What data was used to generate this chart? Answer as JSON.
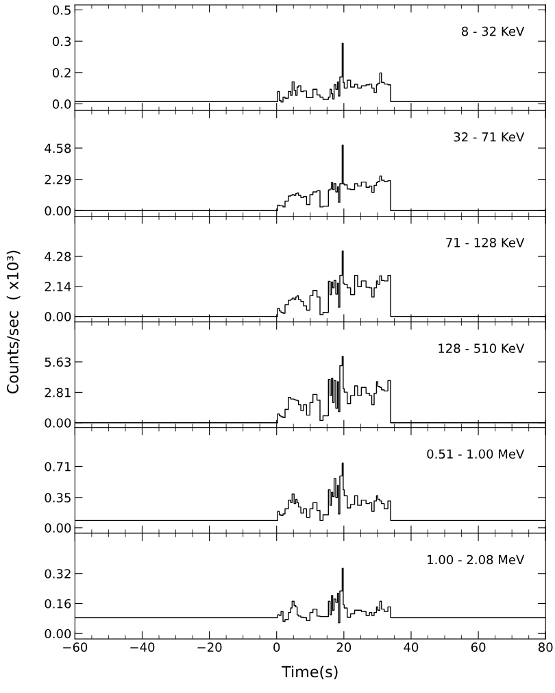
{
  "chart_data": [
    {
      "type": "step",
      "annotations": [
        "8 - 32 KeV"
      ],
      "tick_labels": "y",
      "xlim": [
        -60,
        80
      ],
      "xticks": [
        -60,
        -40,
        -20,
        0,
        20,
        40,
        60,
        80
      ],
      "ylim": [
        -0.033,
        0.49
      ],
      "yticks": [
        {
          "value": 0,
          "label": "0.0"
        },
        {
          "value": 0.155,
          "label": "0.2"
        },
        {
          "value": 0.31,
          "label": "0.3"
        },
        {
          "value": 0.465,
          "label": "0.5"
        }
      ],
      "x": [
        -60,
        0.3,
        0.8,
        1.3,
        1.9,
        2.5,
        3.5,
        4.2,
        4.6,
        5.2,
        5.7,
        6.1,
        6.5,
        7.2,
        8.0,
        8.9,
        9.9,
        10.8,
        12.0,
        12.9,
        13.8,
        15.4,
        15.9,
        16.3,
        16.7,
        17.1,
        17.6,
        18.1,
        18.4,
        18.8,
        19.5,
        19.8,
        20.1,
        21.0,
        22.0,
        23.2,
        24.1,
        25.2,
        26.6,
        27.6,
        28.3,
        29.0,
        29.7,
        30.1,
        30.7,
        31.2,
        32.0,
        33.1,
        33.9,
        80
      ],
      "series": [
        {
          "color": "#000000",
          "values": [
            0.011,
            0.061,
            0.017,
            0.009,
            0.033,
            0.028,
            0.061,
            0.042,
            0.109,
            0.067,
            0.042,
            0.083,
            0.089,
            0.061,
            0.064,
            0.031,
            0.031,
            0.072,
            0.044,
            0.033,
            0.022,
            0.033,
            0.072,
            0.05,
            0.024,
            0.094,
            0.072,
            0.109,
            0.039,
            0.133,
            0.3,
            0.106,
            0.078,
            0.117,
            0.083,
            0.097,
            0.078,
            0.089,
            0.094,
            0.098,
            0.078,
            0.056,
            0.094,
            0.102,
            0.153,
            0.106,
            0.098,
            0.094,
            0.011,
            0.011
          ]
        }
      ]
    },
    {
      "type": "step",
      "annotations": [
        "32 - 71 KeV"
      ],
      "tick_labels": "y",
      "xlim": [
        -60,
        80
      ],
      "xticks": [
        -60,
        -40,
        -20,
        0,
        20,
        40,
        60,
        80
      ],
      "ylim": [
        -0.41,
        7.33
      ],
      "yticks": [
        {
          "value": 0,
          "label": "0.00"
        },
        2.29,
        4.58
      ],
      "x": [
        -60,
        0.3,
        0.8,
        1.3,
        1.9,
        2.5,
        3.5,
        4.2,
        4.6,
        5.2,
        5.7,
        6.1,
        6.5,
        7.2,
        8.0,
        8.9,
        9.9,
        10.8,
        12.0,
        12.9,
        13.8,
        15.4,
        15.9,
        16.3,
        16.7,
        17.1,
        17.6,
        18.1,
        18.4,
        18.8,
        19.5,
        19.8,
        20.1,
        21.0,
        22.0,
        23.2,
        24.1,
        25.2,
        26.6,
        27.6,
        28.3,
        29.0,
        29.7,
        30.1,
        30.7,
        31.2,
        32.0,
        33.1,
        33.9,
        80
      ],
      "series": [
        {
          "color": "#000000",
          "values": [
            0.0,
            0.39,
            0.36,
            0.36,
            0.27,
            0.7,
            1.07,
            1.12,
            1.17,
            1.12,
            1.24,
            1.29,
            1.12,
            0.95,
            1.03,
            0.44,
            1.17,
            1.37,
            1.46,
            0.27,
            0.32,
            1.51,
            1.58,
            2.05,
            1.54,
            1.97,
            1.37,
            1.75,
            0.61,
            1.97,
            4.8,
            1.97,
            1.88,
            1.58,
            1.54,
            1.97,
            1.8,
            2.09,
            1.71,
            1.8,
            1.34,
            1.85,
            2.05,
            2.14,
            2.53,
            2.22,
            2.14,
            2.19,
            0.0,
            0.0
          ]
        }
      ]
    },
    {
      "type": "step",
      "annotations": [
        "71 - 128 KeV"
      ],
      "tick_labels": "y",
      "xlim": [
        -60,
        80
      ],
      "xticks": [
        -60,
        -40,
        -20,
        0,
        20,
        40,
        60,
        80
      ],
      "ylim": [
        -0.39,
        7.15
      ],
      "yticks": [
        {
          "value": 0,
          "label": "0.00"
        },
        2.14,
        4.28
      ],
      "x": [
        -60,
        0.3,
        0.8,
        1.3,
        1.9,
        2.5,
        3.5,
        4.2,
        4.6,
        5.2,
        5.7,
        6.1,
        6.5,
        7.2,
        8.0,
        8.9,
        9.9,
        10.8,
        12.0,
        12.9,
        13.8,
        15.4,
        15.9,
        16.3,
        16.7,
        17.1,
        17.6,
        18.1,
        18.4,
        18.8,
        19.5,
        19.8,
        20.1,
        21.0,
        22.0,
        23.2,
        24.1,
        25.2,
        26.6,
        27.6,
        28.3,
        29.0,
        29.7,
        30.1,
        30.7,
        31.2,
        32.0,
        33.1,
        33.9,
        80
      ],
      "series": [
        {
          "color": "#000000",
          "values": [
            0.0,
            0.58,
            0.39,
            0.29,
            0.23,
            0.83,
            1.15,
            1.2,
            1.31,
            1.2,
            1.39,
            1.48,
            1.2,
            1.07,
            0.75,
            0.45,
            1.48,
            1.85,
            1.39,
            0.13,
            0.29,
            2.5,
            1.56,
            2.45,
            2.04,
            2.56,
            1.59,
            2.37,
            0.66,
            2.93,
            4.67,
            2.37,
            2.29,
            2.04,
            1.56,
            2.93,
            2.12,
            2.53,
            2.08,
            2.04,
            1.39,
            2.04,
            2.53,
            2.29,
            2.89,
            2.56,
            2.53,
            2.93,
            0.0,
            0.0
          ]
        }
      ]
    },
    {
      "type": "step",
      "annotations": [
        "128 - 510 KeV"
      ],
      "tick_labels": "y",
      "ylabel": "Counts/sec  ( x10³)",
      "xlim": [
        -60,
        80
      ],
      "xticks": [
        -60,
        -40,
        -20,
        0,
        20,
        40,
        60,
        80
      ],
      "ylim": [
        -0.45,
        9.33
      ],
      "yticks": [
        {
          "value": 0,
          "label": "0.00"
        },
        2.81,
        5.63
      ],
      "x": [
        -60,
        0.3,
        0.8,
        1.3,
        1.9,
        2.5,
        3.5,
        4.2,
        4.6,
        5.2,
        5.7,
        6.1,
        6.5,
        7.2,
        8.0,
        8.9,
        9.9,
        10.8,
        12.0,
        12.9,
        13.8,
        15.4,
        15.9,
        16.3,
        16.7,
        17.1,
        17.6,
        18.1,
        18.4,
        18.8,
        19.5,
        19.8,
        20.1,
        21.0,
        22.0,
        23.2,
        24.1,
        25.2,
        26.6,
        27.6,
        28.3,
        29.0,
        29.7,
        30.1,
        30.7,
        31.2,
        32.0,
        33.1,
        33.9,
        80
      ],
      "series": [
        {
          "color": "#000000",
          "values": [
            0.0,
            0.81,
            0.64,
            0.55,
            0.47,
            1.23,
            2.34,
            2.19,
            2.19,
            2.13,
            2.09,
            2.04,
            1.66,
            1.13,
            1.66,
            0.7,
            1.87,
            2.62,
            2.09,
            0.21,
            0.64,
            4.0,
            2.51,
            4.11,
            1.87,
            3.9,
            1.34,
            3.79,
            1.02,
            5.28,
            6.13,
            3.15,
            2.83,
            1.77,
            2.51,
            3.41,
            2.51,
            3.26,
            2.72,
            2.51,
            1.66,
            2.72,
            3.79,
            3.36,
            3.26,
            3.04,
            2.94,
            3.9,
            0.0,
            0.0
          ]
        }
      ]
    },
    {
      "type": "step",
      "annotations": [
        "0.51 - 1.00 MeV"
      ],
      "tick_labels": "y",
      "xlim": [
        -60,
        80
      ],
      "xticks": [
        -60,
        -40,
        -20,
        0,
        20,
        40,
        60,
        80
      ],
      "ylim": [
        -0.064,
        1.16
      ],
      "yticks": [
        {
          "value": 0,
          "label": "0.00"
        },
        0.35,
        0.71
      ],
      "x": [
        -60,
        0.3,
        0.8,
        1.3,
        1.9,
        2.5,
        3.5,
        4.2,
        4.6,
        5.2,
        5.7,
        6.1,
        6.5,
        7.2,
        8.0,
        8.9,
        9.9,
        10.8,
        12.0,
        12.9,
        13.8,
        15.4,
        15.9,
        16.3,
        16.7,
        17.1,
        17.6,
        18.1,
        18.4,
        18.8,
        19.5,
        19.8,
        20.1,
        21.0,
        22.0,
        23.2,
        24.1,
        25.2,
        26.6,
        27.6,
        28.3,
        29.0,
        29.7,
        30.1,
        30.7,
        31.2,
        32.0,
        33.1,
        33.9,
        80
      ],
      "series": [
        {
          "color": "#000000",
          "values": [
            0.084,
            0.19,
            0.15,
            0.14,
            0.16,
            0.22,
            0.32,
            0.29,
            0.39,
            0.28,
            0.33,
            0.29,
            0.24,
            0.17,
            0.22,
            0.12,
            0.22,
            0.29,
            0.2,
            0.084,
            0.15,
            0.44,
            0.26,
            0.41,
            0.36,
            0.57,
            0.35,
            0.49,
            0.16,
            0.6,
            0.75,
            0.44,
            0.37,
            0.23,
            0.27,
            0.37,
            0.26,
            0.32,
            0.28,
            0.29,
            0.19,
            0.31,
            0.37,
            0.33,
            0.31,
            0.28,
            0.22,
            0.31,
            0.084,
            0.084
          ]
        }
      ]
    },
    {
      "type": "step",
      "annotations": [
        "1.00 - 2.08 MeV"
      ],
      "xlabel": "Time(s)",
      "xlim": [
        -60,
        80
      ],
      "xticks": [
        {
          "value": -60,
          "label": "−60"
        },
        {
          "value": -40,
          "label": "−40"
        },
        {
          "value": -20,
          "label": "−20"
        },
        0,
        20,
        40,
        60,
        80
      ],
      "ylim": [
        -0.029,
        0.535
      ],
      "yticks": [
        {
          "value": 0,
          "label": "0.00"
        },
        0.16,
        0.32
      ],
      "x": [
        -60,
        0.3,
        0.8,
        1.3,
        1.9,
        2.5,
        3.5,
        4.2,
        4.6,
        5.2,
        5.7,
        6.1,
        6.5,
        7.2,
        8.0,
        8.9,
        9.9,
        10.8,
        12.0,
        12.9,
        13.8,
        15.4,
        15.9,
        16.3,
        16.7,
        17.1,
        17.6,
        18.1,
        18.4,
        18.8,
        19.5,
        19.8,
        20.1,
        21.0,
        22.0,
        23.2,
        24.1,
        25.2,
        26.6,
        27.6,
        28.3,
        29.0,
        29.7,
        30.1,
        30.7,
        31.2,
        32.0,
        33.1,
        33.9,
        80
      ],
      "series": [
        {
          "color": "#000000",
          "values": [
            0.085,
            0.1,
            0.097,
            0.118,
            0.065,
            0.075,
            0.112,
            0.136,
            0.172,
            0.148,
            0.142,
            0.099,
            0.093,
            0.087,
            0.085,
            0.069,
            0.112,
            0.13,
            0.093,
            0.09,
            0.09,
            0.172,
            0.1,
            0.202,
            0.124,
            0.184,
            0.166,
            0.215,
            0.057,
            0.227,
            0.348,
            0.154,
            0.136,
            0.087,
            0.105,
            0.124,
            0.124,
            0.118,
            0.097,
            0.112,
            0.097,
            0.112,
            0.142,
            0.124,
            0.172,
            0.13,
            0.118,
            0.142,
            0.085,
            0.085
          ]
        }
      ]
    }
  ]
}
